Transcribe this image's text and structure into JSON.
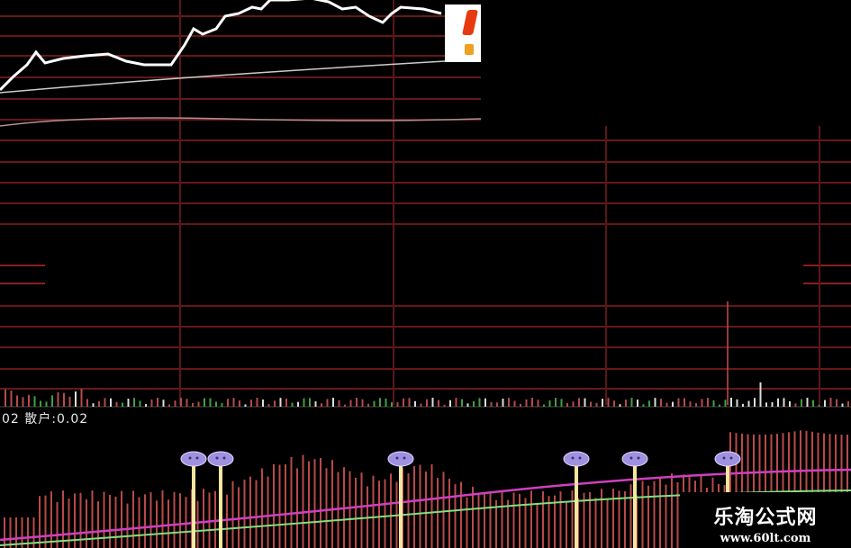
{
  "indicator": {
    "label": "02 散户:0.02"
  },
  "watermark": {
    "title": "乐淘公式网",
    "url": "www.60lt.com"
  },
  "colors": {
    "grid": "#8a1f1f",
    "price_line": "#ffffff",
    "bars": "#b84a4a",
    "ma_magenta": "#d040c0",
    "ma_green": "#80e080",
    "signal_line": "#f5e6a0",
    "signal_marker": "#a090e0"
  },
  "icons": {
    "signal_marker": "purple-smiley-marker-icon",
    "logo": "brand-logo-icon"
  }
}
